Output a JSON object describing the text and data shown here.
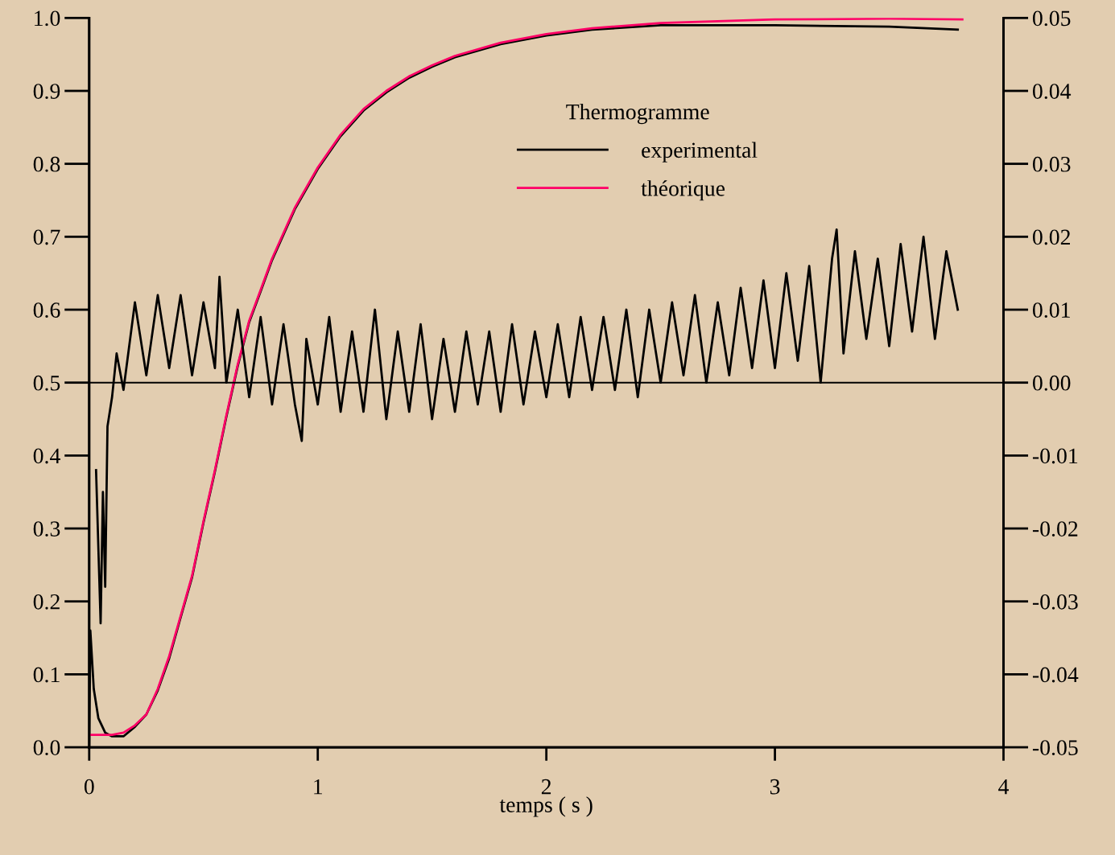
{
  "chart_data": {
    "type": "line",
    "xlabel": "temps ( s )",
    "legend_title": "Thermogramme",
    "legend": "top",
    "xlim": [
      0,
      4
    ],
    "xticks": [
      0,
      1,
      2,
      3,
      4
    ],
    "ylim": [
      0,
      1
    ],
    "yticks": [
      {
        "value": 0,
        "label": "0.0"
      },
      0.1,
      0.2,
      0.3,
      0.4,
      0.5,
      0.6,
      0.7,
      0.8,
      0.9,
      {
        "value": 1,
        "label": "1.0"
      }
    ],
    "y2lim": [
      -0.05,
      0.05
    ],
    "y2ticks": [
      -0.05,
      -0.04,
      -0.03,
      -0.02,
      -0.01,
      {
        "value": 0,
        "label": "0.00"
      },
      0.01,
      0.02,
      0.03,
      0.04,
      0.05
    ],
    "ref_lines": [
      {
        "axis": "y2",
        "value": 0,
        "color": "#000000"
      }
    ],
    "series": [
      {
        "name": "experimental",
        "color": "#000000",
        "x": [
          0,
          0.005,
          0.02,
          0.04,
          0.07,
          0.1,
          0.15,
          0.2,
          0.25,
          0.3,
          0.35,
          0.4,
          0.45,
          0.5,
          0.55,
          0.6,
          0.65,
          0.7,
          0.75,
          0.8,
          0.9,
          1.0,
          1.1,
          1.2,
          1.3,
          1.4,
          1.5,
          1.6,
          1.8,
          2.0,
          2.2,
          2.5,
          3.0,
          3.5,
          3.8
        ],
        "values": [
          0.0,
          0.16,
          0.08,
          0.04,
          0.02,
          0.015,
          0.015,
          0.028,
          0.045,
          0.078,
          0.122,
          0.178,
          0.233,
          0.308,
          0.378,
          0.453,
          0.523,
          0.583,
          0.625,
          0.668,
          0.738,
          0.793,
          0.838,
          0.873,
          0.898,
          0.918,
          0.933,
          0.946,
          0.964,
          0.976,
          0.984,
          0.99,
          0.99,
          0.988,
          0.984
        ]
      },
      {
        "name": "théorique",
        "color": "#ff0066",
        "x": [
          0,
          0.1,
          0.15,
          0.2,
          0.25,
          0.3,
          0.35,
          0.4,
          0.45,
          0.5,
          0.55,
          0.6,
          0.65,
          0.7,
          0.75,
          0.8,
          0.9,
          1.0,
          1.1,
          1.2,
          1.3,
          1.4,
          1.5,
          1.6,
          1.8,
          2.0,
          2.2,
          2.5,
          3.0,
          3.5,
          3.82
        ],
        "values": [
          0.017,
          0.017,
          0.02,
          0.03,
          0.045,
          0.08,
          0.125,
          0.18,
          0.235,
          0.31,
          0.38,
          0.455,
          0.525,
          0.585,
          0.627,
          0.67,
          0.74,
          0.795,
          0.84,
          0.875,
          0.9,
          0.92,
          0.935,
          0.948,
          0.966,
          0.978,
          0.986,
          0.993,
          0.998,
          0.999,
          0.998
        ]
      },
      {
        "color": "#000000",
        "axis": "y2",
        "x": [
          0.03,
          0.05,
          0.06,
          0.07,
          0.08,
          0.1,
          0.12,
          0.15,
          0.2,
          0.25,
          0.3,
          0.35,
          0.4,
          0.45,
          0.5,
          0.55,
          0.57,
          0.6,
          0.65,
          0.7,
          0.75,
          0.8,
          0.85,
          0.9,
          0.93,
          0.95,
          1.0,
          1.05,
          1.1,
          1.15,
          1.2,
          1.25,
          1.3,
          1.35,
          1.4,
          1.45,
          1.5,
          1.55,
          1.6,
          1.65,
          1.7,
          1.75,
          1.8,
          1.85,
          1.9,
          1.95,
          2.0,
          2.05,
          2.1,
          2.15,
          2.2,
          2.25,
          2.3,
          2.35,
          2.4,
          2.45,
          2.5,
          2.55,
          2.6,
          2.65,
          2.7,
          2.75,
          2.8,
          2.85,
          2.9,
          2.95,
          3.0,
          3.05,
          3.1,
          3.15,
          3.2,
          3.25,
          3.27,
          3.3,
          3.35,
          3.4,
          3.45,
          3.5,
          3.55,
          3.6,
          3.65,
          3.7,
          3.75,
          3.8
        ],
        "values": [
          -0.012,
          -0.033,
          -0.015,
          -0.028,
          -0.006,
          -0.002,
          0.004,
          -0.001,
          0.011,
          0.001,
          0.012,
          0.002,
          0.012,
          0.001,
          0.011,
          0.002,
          0.0145,
          0.0,
          0.01,
          -0.002,
          0.009,
          -0.003,
          0.008,
          -0.003,
          -0.008,
          0.006,
          -0.003,
          0.009,
          -0.004,
          0.007,
          -0.004,
          0.01,
          -0.005,
          0.007,
          -0.004,
          0.008,
          -0.005,
          0.006,
          -0.004,
          0.007,
          -0.003,
          0.007,
          -0.004,
          0.008,
          -0.003,
          0.007,
          -0.002,
          0.008,
          -0.002,
          0.009,
          -0.001,
          0.009,
          -0.001,
          0.01,
          -0.002,
          0.01,
          0.0,
          0.011,
          0.001,
          0.012,
          0.0,
          0.011,
          0.001,
          0.013,
          0.002,
          0.014,
          0.002,
          0.015,
          0.003,
          0.016,
          0.0,
          0.017,
          0.021,
          0.004,
          0.018,
          0.006,
          0.017,
          0.005,
          0.019,
          0.007,
          0.02,
          0.006,
          0.018,
          0.01
        ]
      }
    ]
  }
}
